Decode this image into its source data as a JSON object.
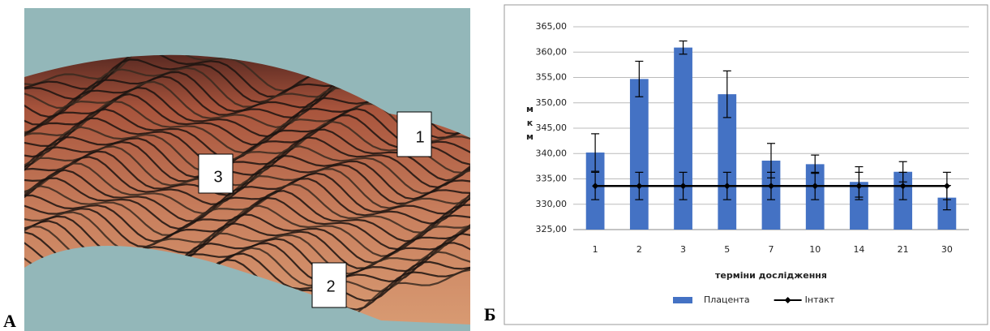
{
  "panels": {
    "a": {
      "label": "А",
      "markers": [
        "1",
        "2",
        "3"
      ]
    },
    "b": {
      "label": "Б"
    }
  },
  "chart_data": {
    "type": "bar",
    "x_label": "терміни дослідження",
    "y_label": "мкм",
    "categories": [
      "1",
      "2",
      "3",
      "5",
      "7",
      "10",
      "14",
      "21",
      "30"
    ],
    "series": [
      {
        "name": "Плацента",
        "type": "bar",
        "color": "#4472c4",
        "values": [
          340.2,
          354.7,
          360.9,
          351.7,
          338.6,
          337.9,
          334.4,
          336.4,
          331.3
        ],
        "errors": [
          3.7,
          3.5,
          1.3,
          4.6,
          3.4,
          1.8,
          3.0,
          2.0,
          2.4
        ]
      },
      {
        "name": "Інтакт",
        "type": "line",
        "color": "#000000",
        "values": [
          333.6,
          333.6,
          333.6,
          333.6,
          333.6,
          333.6,
          333.6,
          333.6,
          333.6
        ],
        "errors": [
          2.7,
          2.7,
          2.7,
          2.7,
          2.7,
          2.7,
          2.7,
          2.7,
          2.7
        ]
      }
    ],
    "ylim": [
      325,
      365
    ],
    "yticks": [
      {
        "value": 325,
        "label": "325,00"
      },
      {
        "value": 330,
        "label": "330,00"
      },
      {
        "value": 335,
        "label": "335,00"
      },
      {
        "value": 340,
        "label": "340,00"
      },
      {
        "value": 345,
        "label": "345,00"
      },
      {
        "value": 350,
        "label": "350,00"
      },
      {
        "value": 355,
        "label": "355,00"
      },
      {
        "value": 360,
        "label": "360,00"
      },
      {
        "value": 365,
        "label": "365,00"
      }
    ],
    "grid": true,
    "legend": "bottom"
  }
}
